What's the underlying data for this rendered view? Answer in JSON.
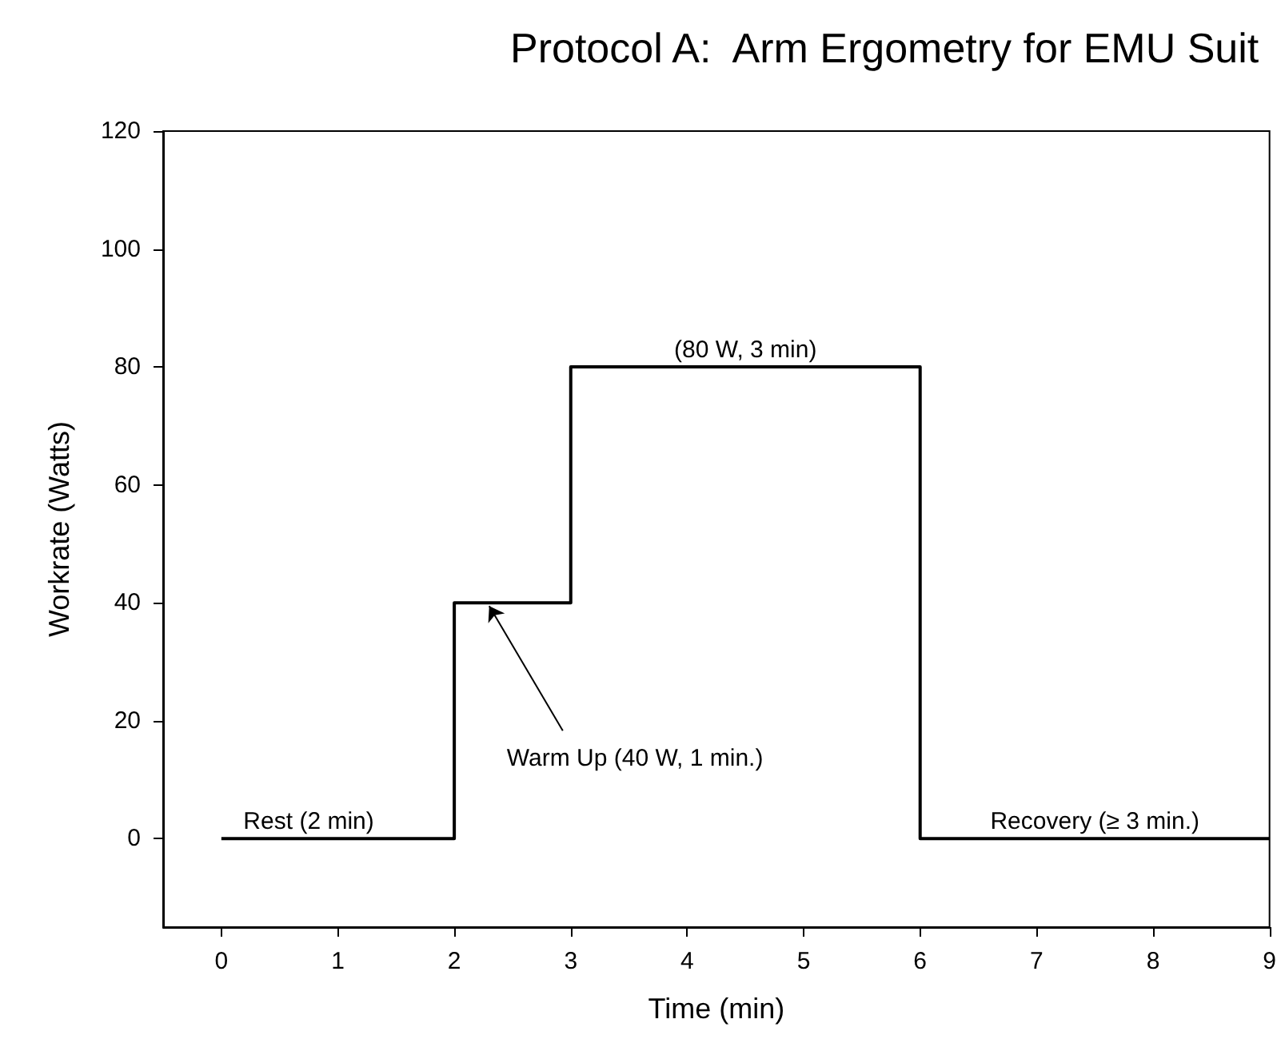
{
  "chart_data": {
    "type": "step",
    "title": "Protocol A:  Arm Ergometry for EMU Suit",
    "xlabel": "Time (min)",
    "ylabel": "Workrate (Watts)",
    "x": [
      0,
      2,
      3,
      6,
      9
    ],
    "series": [
      {
        "color": "#000000",
        "values": [
          0,
          40,
          80,
          0,
          0
        ]
      }
    ],
    "xlim": [
      -0.5,
      9
    ],
    "xticks": [
      0,
      1,
      2,
      3,
      4,
      5,
      6,
      7,
      8,
      9
    ],
    "ylim": [
      -15,
      120
    ],
    "yticks": [
      0,
      20,
      40,
      60,
      80,
      100,
      120
    ],
    "grid": false,
    "marker": "none",
    "line_style": "solid",
    "annotations": [
      {
        "text": "Rest (2 min)",
        "x": 0.75,
        "y": 0
      },
      {
        "text": "Warm Up (40 W, 1 min.)",
        "x": 2.3,
        "y": 40
      },
      {
        "text": "(80 W, 3 min)",
        "x": 4.5,
        "y": 80
      },
      {
        "text": "Recovery (≥ 3 min.)",
        "x": 7.5,
        "y": 0
      }
    ]
  }
}
